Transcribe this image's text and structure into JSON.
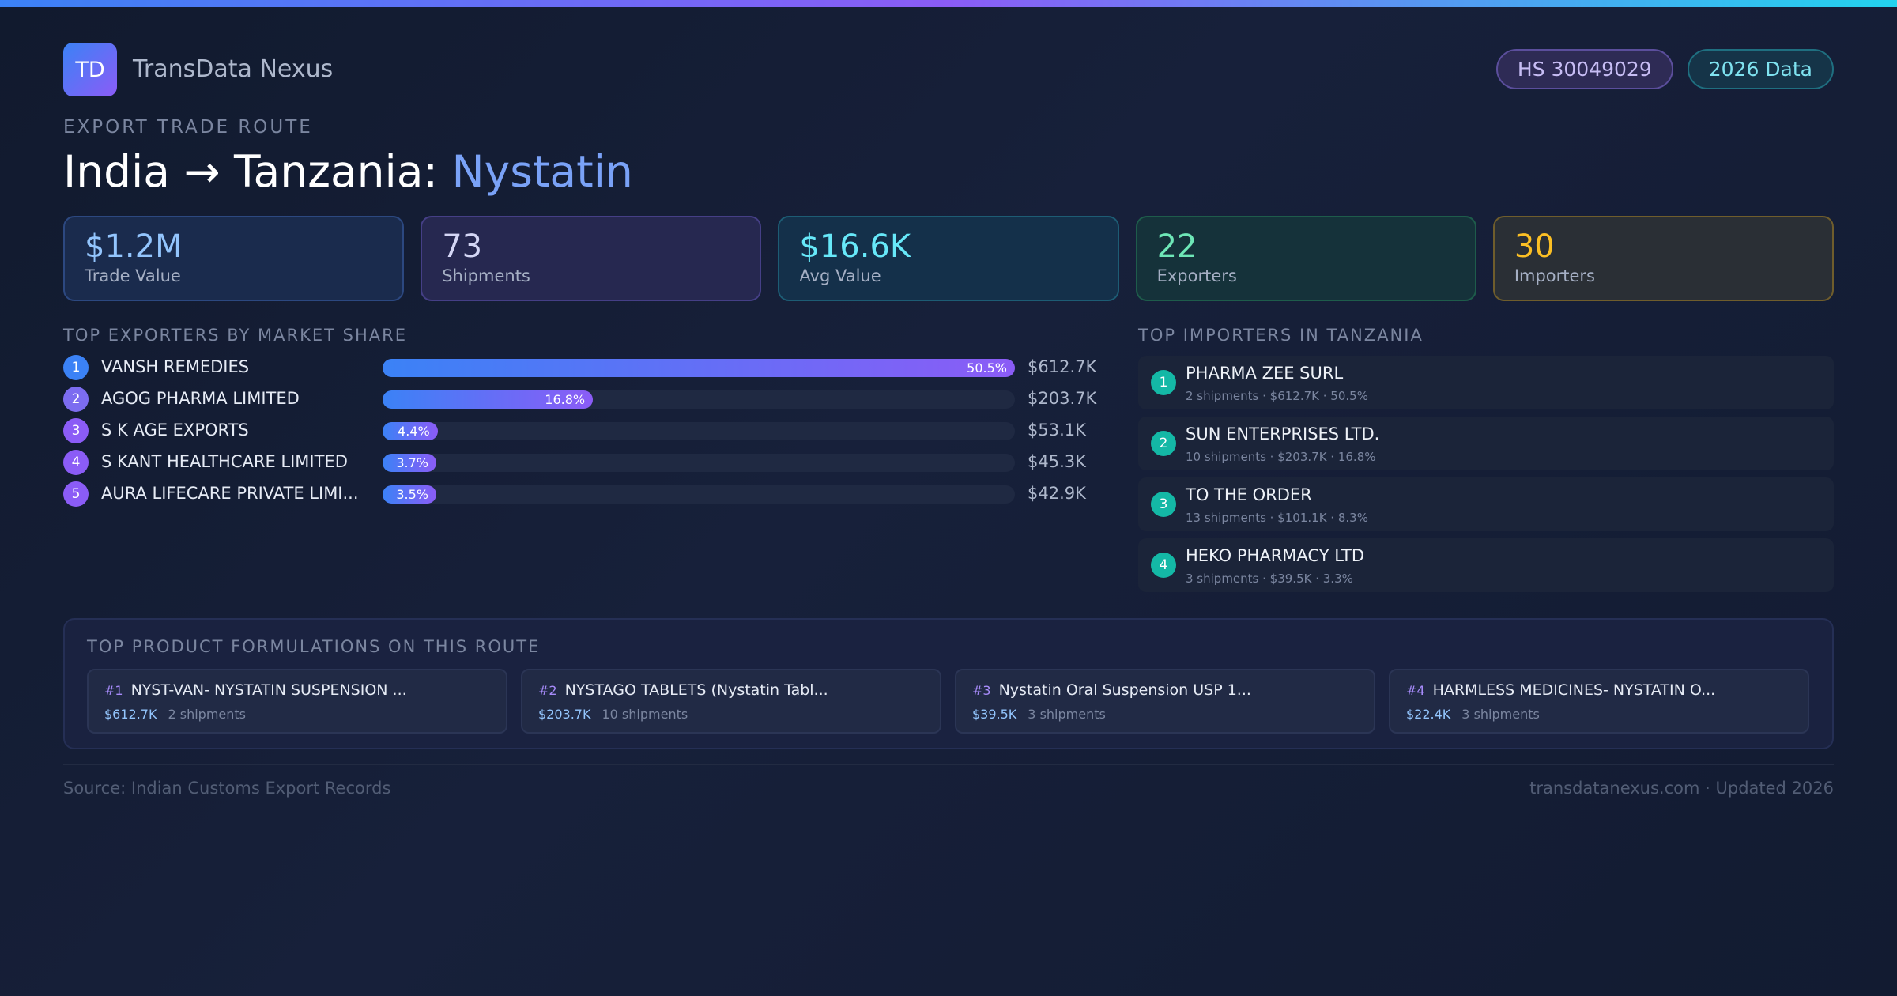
{
  "header": {
    "logo": "TD",
    "brand": "TransData Nexus",
    "badges": [
      "HS 30049029",
      "2026 Data"
    ]
  },
  "route": {
    "eyebrow": "EXPORT TRADE ROUTE",
    "title": "India → Tanzania:",
    "product": "Nystatin"
  },
  "stats": [
    {
      "value": "$1.2M",
      "label": "Trade Value"
    },
    {
      "value": "73",
      "label": "Shipments"
    },
    {
      "value": "$16.6K",
      "label": "Avg Value"
    },
    {
      "value": "22",
      "label": "Exporters"
    },
    {
      "value": "30",
      "label": "Importers"
    }
  ],
  "exporters": {
    "title": "TOP EXPORTERS BY MARKET SHARE",
    "rows": [
      {
        "rank": 1,
        "name": "VANSH REMEDIES",
        "share": 50.5,
        "share_label": "50.5%",
        "value": "$612.7K"
      },
      {
        "rank": 2,
        "name": "AGOG PHARMA LIMITED",
        "share": 16.8,
        "share_label": "16.8%",
        "value": "$203.7K"
      },
      {
        "rank": 3,
        "name": "S K AGE EXPORTS",
        "share": 4.4,
        "share_label": "4.4%",
        "value": "$53.1K"
      },
      {
        "rank": 4,
        "name": "S KANT HEALTHCARE LIMITED",
        "share": 3.7,
        "share_label": "3.7%",
        "value": "$45.3K"
      },
      {
        "rank": 5,
        "name": "AURA LIFECARE PRIVATE LIMI...",
        "share": 3.5,
        "share_label": "3.5%",
        "value": "$42.9K"
      }
    ]
  },
  "importers": {
    "title": "TOP IMPORTERS IN TANZANIA",
    "rows": [
      {
        "rank": 1,
        "name": "PHARMA ZEE SURL",
        "detail": "2 shipments · $612.7K · 50.5%"
      },
      {
        "rank": 2,
        "name": "SUN ENTERPRISES LTD.",
        "detail": "10 shipments · $203.7K · 16.8%"
      },
      {
        "rank": 3,
        "name": "TO THE ORDER",
        "detail": "13 shipments · $101.1K · 8.3%"
      },
      {
        "rank": 4,
        "name": "HEKO PHARMACY LTD",
        "detail": "3 shipments · $39.5K · 3.3%"
      }
    ]
  },
  "formulations": {
    "title": "TOP PRODUCT FORMULATIONS ON THIS ROUTE",
    "items": [
      {
        "rank": "#1",
        "name": "NYST-VAN- NYSTATIN SUSPENSION ...",
        "value": "$612.7K",
        "shipments": "2 shipments"
      },
      {
        "rank": "#2",
        "name": "NYSTAGO TABLETS (Nystatin Tabl...",
        "value": "$203.7K",
        "shipments": "10 shipments"
      },
      {
        "rank": "#3",
        "name": "Nystatin Oral Suspension USP 1...",
        "value": "$39.5K",
        "shipments": "3 shipments"
      },
      {
        "rank": "#4",
        "name": "HARMLESS MEDICINES- NYSTATIN O...",
        "value": "$22.4K",
        "shipments": "3 shipments"
      }
    ]
  },
  "footer": {
    "source": "Source: Indian Customs Export Records",
    "site": "transdatanexus.com · Updated 2026"
  }
}
